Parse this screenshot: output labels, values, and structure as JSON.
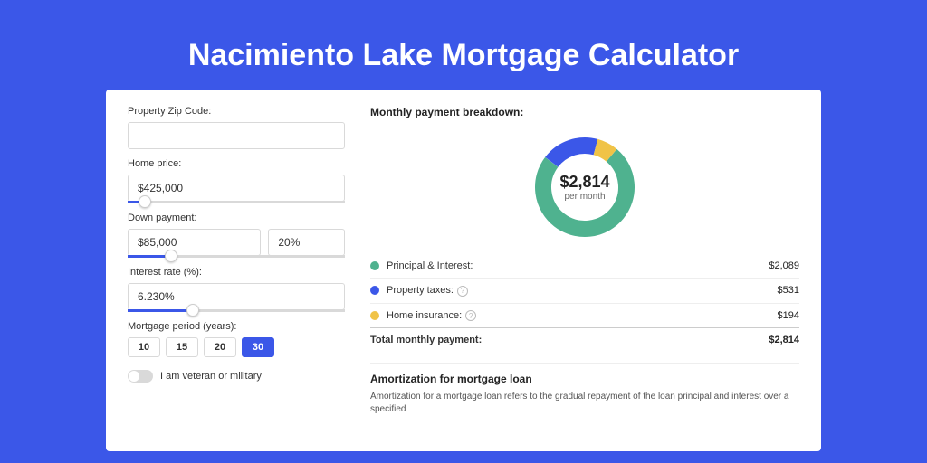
{
  "page_title": "Nacimiento Lake Mortgage Calculator",
  "colors": {
    "background": "#3b57e8",
    "card_bg": "#ffffff",
    "principal": "#4fb28f",
    "taxes": "#3b57e8",
    "insurance": "#f0c347",
    "input_border": "#d9d9d9"
  },
  "form": {
    "zip_label": "Property Zip Code:",
    "zip_value": "",
    "home_price_label": "Home price:",
    "home_price_value": "$425,000",
    "home_price_slider_pct": 8,
    "down_payment_label": "Down payment:",
    "down_payment_value": "$85,000",
    "down_payment_pct_value": "20%",
    "down_payment_slider_pct": 20,
    "rate_label": "Interest rate (%):",
    "rate_value": "6.230%",
    "rate_slider_pct": 30,
    "period_label": "Mortgage period (years):",
    "period_options": [
      "10",
      "15",
      "20",
      "30"
    ],
    "period_selected": "30",
    "veteran_label": "I am veteran or military",
    "veteran_on": false
  },
  "breakdown": {
    "title": "Monthly payment breakdown:",
    "center_value": "$2,814",
    "center_sub": "per month",
    "items": [
      {
        "key": "principal",
        "label": "Principal & Interest:",
        "value": "$2,089",
        "color": "#4fb28f",
        "info": false,
        "pct": 74.2
      },
      {
        "key": "taxes",
        "label": "Property taxes:",
        "value": "$531",
        "color": "#3b57e8",
        "info": true,
        "pct": 18.9
      },
      {
        "key": "insurance",
        "label": "Home insurance:",
        "value": "$194",
        "color": "#f0c347",
        "info": true,
        "pct": 6.9
      }
    ],
    "total_label": "Total monthly payment:",
    "total_value": "$2,814"
  },
  "amort": {
    "title": "Amortization for mortgage loan",
    "text": "Amortization for a mortgage loan refers to the gradual repayment of the loan principal and interest over a specified"
  },
  "donut": {
    "radius": 46,
    "thickness": 18,
    "rotation_start": -50
  }
}
